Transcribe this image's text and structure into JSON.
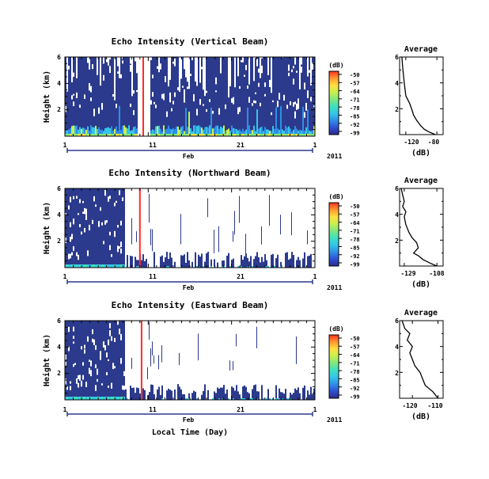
{
  "figure": {
    "xlabel": "Local Time (Day)",
    "month_label": "Feb",
    "year_label": "2011",
    "colors": {
      "background_fill": "#2b3a8c",
      "event_line": "#ff2a2a",
      "colormap": [
        "#2b2b8c",
        "#2f4fd0",
        "#2f8fe8",
        "#35c5e8",
        "#3fe0c0",
        "#7fe87f",
        "#c8f050",
        "#ffe040",
        "#ff9a30",
        "#ff3020"
      ]
    }
  },
  "chart_data": [
    {
      "type": "heatmap",
      "title": "Echo Intensity (Vertical Beam)",
      "ylabel": "Height (km)",
      "x_tick_labels": [
        "1",
        "11",
        "21",
        "1"
      ],
      "x_ticks_days": [
        1,
        11,
        21,
        31
      ],
      "xlim": [
        1,
        31
      ],
      "y_tick_labels": [
        "6",
        "4",
        "2"
      ],
      "y_ticks": [
        6,
        4,
        2
      ],
      "ylim": [
        0,
        6
      ],
      "event_day": 10.4,
      "colorbar": {
        "unit": "(dB)",
        "tick_labels": [
          "-50",
          "-57",
          "-64",
          "-71",
          "-78",
          "-85",
          "-92",
          "-99"
        ],
        "range": [
          -99,
          -50
        ]
      },
      "profile": {
        "title": "Average",
        "xlabel": "(dB)",
        "x_tick_labels": [
          "-120",
          "-80"
        ],
        "x_ticks": [
          -120,
          -80
        ],
        "xlim": [
          -128,
          -72
        ],
        "y_tick_labels": [
          "6",
          "4",
          "2"
        ],
        "ylim": [
          0,
          6
        ],
        "x": [
          -125,
          -124,
          -122,
          -120,
          -115,
          -112,
          -110,
          -106,
          -101,
          -96,
          -90,
          -82
        ],
        "y": [
          6.0,
          5.2,
          4.0,
          3.0,
          2.4,
          1.9,
          1.5,
          1.1,
          0.7,
          0.4,
          0.2,
          0.0
        ]
      }
    },
    {
      "type": "heatmap",
      "title": "Echo Intensity (Northward Beam)",
      "ylabel": "Height (km)",
      "x_tick_labels": [
        "1",
        "11",
        "21",
        "1"
      ],
      "x_ticks_days": [
        1,
        11,
        21,
        31
      ],
      "xlim": [
        1,
        31
      ],
      "y_tick_labels": [
        "6",
        "4",
        "2"
      ],
      "y_ticks": [
        6,
        4,
        2
      ],
      "ylim": [
        0,
        6
      ],
      "event_day": 10.0,
      "colorbar": {
        "unit": "(dB)",
        "tick_labels": [
          "-50",
          "-57",
          "-64",
          "-71",
          "-78",
          "-85",
          "-92",
          "-99"
        ],
        "range": [
          -99,
          -50
        ]
      },
      "profile": {
        "title": "Average",
        "xlabel": "(dB)",
        "x_tick_labels": [
          "-129",
          "-108"
        ],
        "x_ticks": [
          -129,
          -108
        ],
        "xlim": [
          -132,
          -104
        ],
        "y_tick_labels": [
          "6",
          "4",
          "2"
        ],
        "ylim": [
          0,
          6
        ],
        "x": [
          -131,
          -130,
          -129,
          -130,
          -128,
          -129,
          -128,
          -126,
          -124,
          -121,
          -120,
          -123,
          -120,
          -117,
          -112,
          -108
        ],
        "y": [
          6.0,
          5.5,
          5.0,
          4.6,
          4.2,
          3.8,
          3.2,
          2.6,
          2.2,
          1.8,
          1.4,
          1.0,
          0.8,
          0.5,
          0.2,
          0.0
        ]
      }
    },
    {
      "type": "heatmap",
      "title": "Echo Intensity (Eastward Beam)",
      "ylabel": "Height (km)",
      "x_tick_labels": [
        "1",
        "11",
        "21",
        "1"
      ],
      "x_ticks_days": [
        1,
        11,
        21,
        31
      ],
      "xlim": [
        1,
        31
      ],
      "y_tick_labels": [
        "6",
        "4",
        "2"
      ],
      "y_ticks": [
        6,
        4,
        2
      ],
      "ylim": [
        0,
        6
      ],
      "event_day": 10.2,
      "colorbar": {
        "unit": "(dB)",
        "tick_labels": [
          "-50",
          "-57",
          "-64",
          "-71",
          "-78",
          "-85",
          "-92",
          "-99"
        ],
        "range": [
          -99,
          -50
        ]
      },
      "profile": {
        "title": "Average",
        "xlabel": "(dB)",
        "x_tick_labels": [
          "-120",
          "-110"
        ],
        "x_ticks": [
          -120,
          -110
        ],
        "xlim": [
          -125,
          -108
        ],
        "y_tick_labels": [
          "6",
          "4",
          "2"
        ],
        "ylim": [
          0,
          6
        ],
        "x": [
          -124,
          -123,
          -121,
          -122,
          -120,
          -121,
          -120,
          -119,
          -117,
          -116,
          -115,
          -112,
          -110
        ],
        "y": [
          6.0,
          5.4,
          5.0,
          4.5,
          4.0,
          3.5,
          3.0,
          2.5,
          2.0,
          1.5,
          1.0,
          0.5,
          0.0
        ]
      }
    }
  ]
}
